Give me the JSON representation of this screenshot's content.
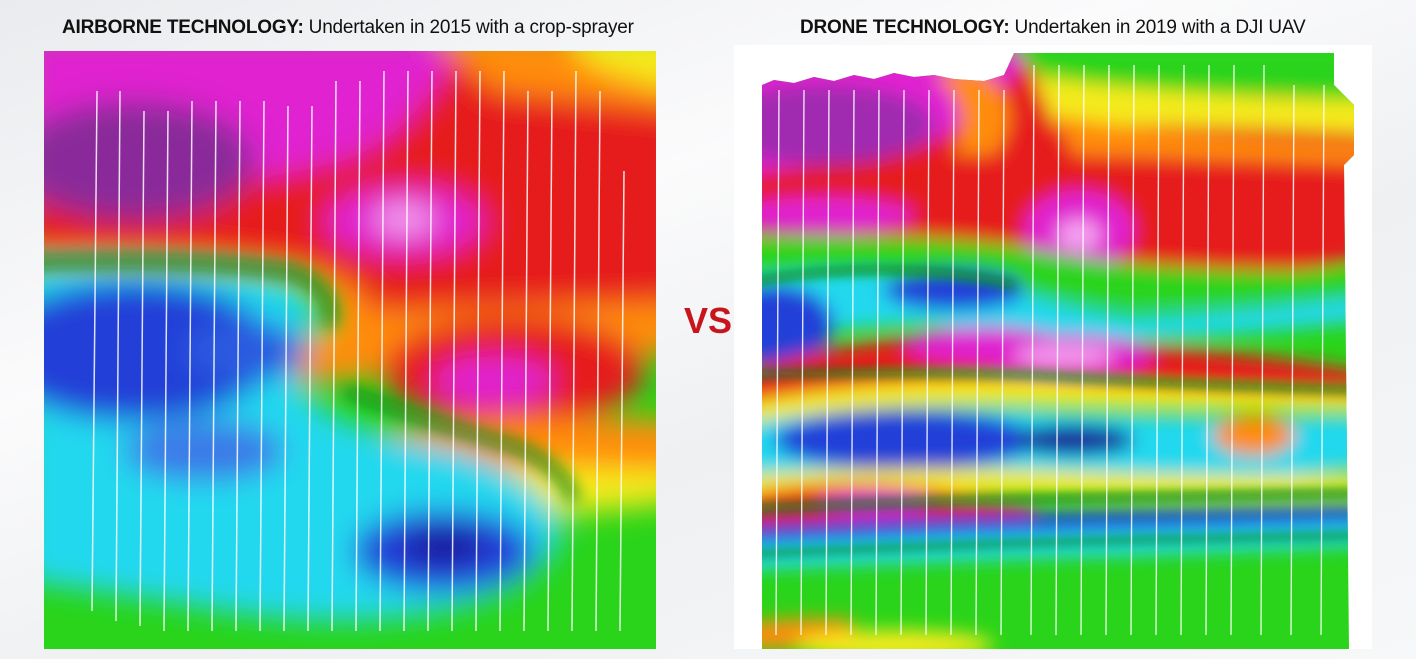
{
  "left": {
    "title_bold": "AIRBORNE TECHNOLOGY:",
    "title_rest": " Undertaken in 2015 with a crop-sprayer"
  },
  "right": {
    "title_bold": "DRONE TECHNOLOGY:",
    "title_rest": " Undertaken in 2019 with a DJI UAV"
  },
  "vs_label": "VS",
  "colors": {
    "accent_red": "#c8141b",
    "magenta": "#e020d0",
    "red": "#e61a1a",
    "orange": "#ff8c10",
    "yellow": "#f4ea1a",
    "green": "#2ad41a",
    "dark_green": "#0a8a1a",
    "cyan": "#20d8ee",
    "blue": "#2040d8",
    "navy": "#1a1a9a"
  }
}
